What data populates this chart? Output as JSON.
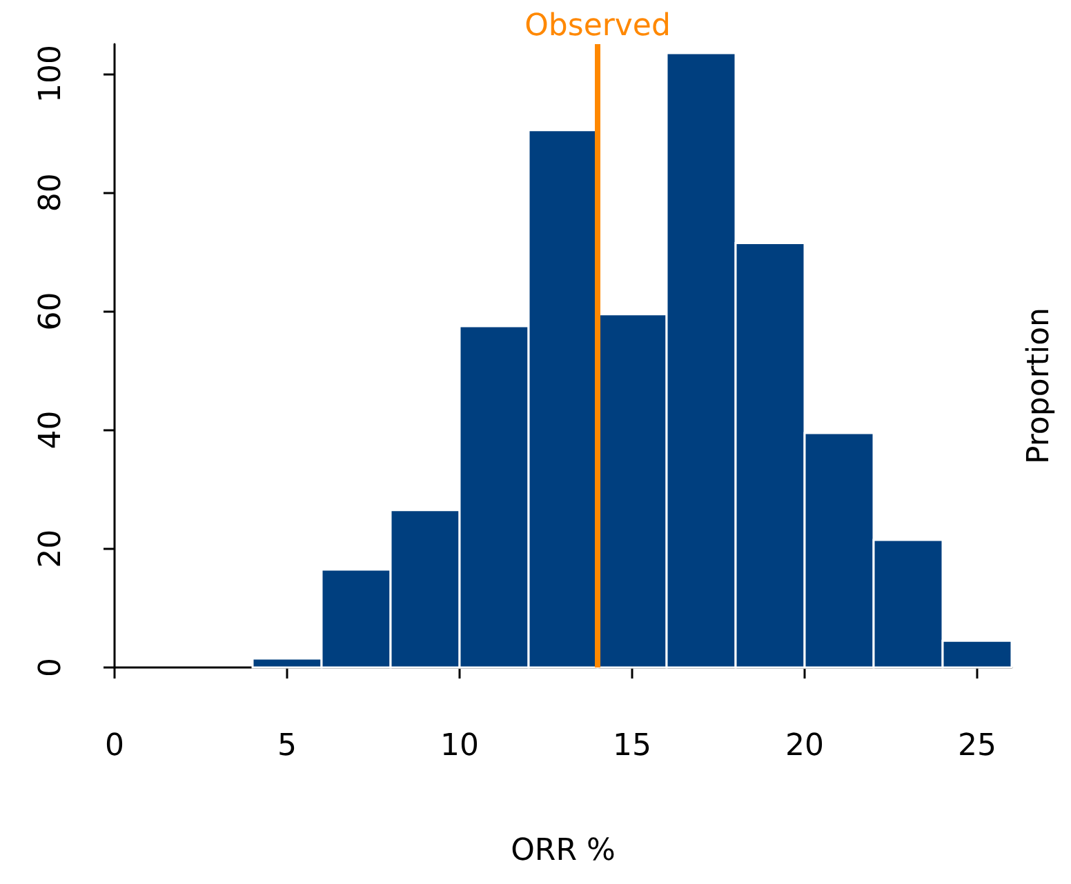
{
  "chart_data": {
    "type": "histogram",
    "xlabel": "ORR %",
    "ylabel": "Proportion",
    "bins": [
      4,
      6,
      8,
      10,
      12,
      14,
      16,
      18,
      20,
      22,
      24,
      26
    ],
    "values": [
      1.5,
      16.5,
      26.5,
      57.5,
      90.5,
      59.5,
      103.5,
      71.5,
      39.5,
      21.5,
      4.5
    ],
    "color": "#003f7f",
    "xlim": [
      0,
      26
    ],
    "xticks": [
      0,
      5,
      10,
      15,
      20,
      25
    ],
    "ylim": [
      0,
      105
    ],
    "yticks": [
      0,
      20,
      40,
      60,
      80,
      100
    ],
    "ref_lines": [
      {
        "axis": "x",
        "value": 14,
        "label": "Observed",
        "color": "#ff8800"
      }
    ],
    "grid": false
  }
}
